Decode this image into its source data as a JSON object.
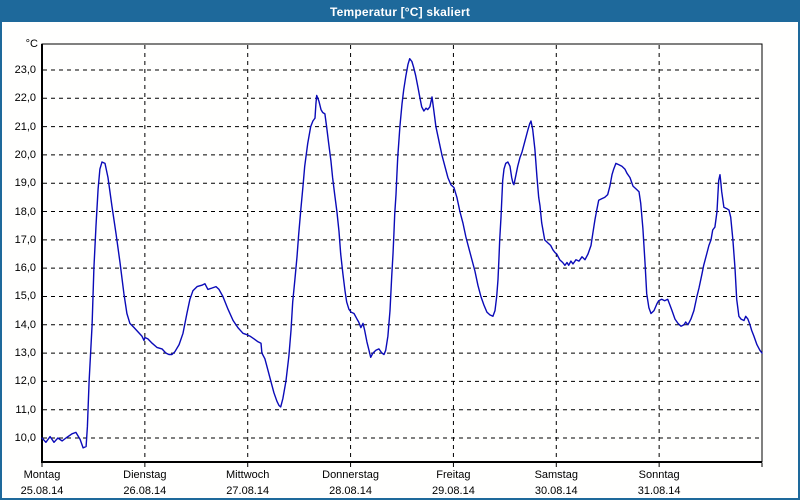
{
  "window": {
    "title": "Temperatur [°C] skaliert"
  },
  "chart_data": {
    "type": "line",
    "title": "Temperatur [°C] skaliert",
    "xlabel": "",
    "ylabel": "°C",
    "grid": "dashed",
    "legend": "none",
    "line_color": "#0b0bb8",
    "y_axis": {
      "min_shown": 10.0,
      "max_shown": 23.0,
      "tick_step": 1.0,
      "unit": "°C"
    },
    "x_range_hours": [
      0,
      168
    ],
    "y_ticks": [
      {
        "value": 23,
        "label": "23,0"
      },
      {
        "value": 22,
        "label": "22,0"
      },
      {
        "value": 21,
        "label": "21,0"
      },
      {
        "value": 20,
        "label": "20,0"
      },
      {
        "value": 19,
        "label": "19,0"
      },
      {
        "value": 18,
        "label": "18,0"
      },
      {
        "value": 17,
        "label": "17,0"
      },
      {
        "value": 16,
        "label": "16,0"
      },
      {
        "value": 15,
        "label": "15,0"
      },
      {
        "value": 14,
        "label": "14,0"
      },
      {
        "value": 13,
        "label": "13,0"
      },
      {
        "value": 12,
        "label": "12,0"
      },
      {
        "value": 11,
        "label": "11,0"
      },
      {
        "value": 10,
        "label": "10,0"
      }
    ],
    "days": [
      {
        "name": "Montag",
        "date": "25.08.14"
      },
      {
        "name": "Dienstag",
        "date": "26.08.14"
      },
      {
        "name": "Mittwoch",
        "date": "27.08.14"
      },
      {
        "name": "Donnerstag",
        "date": "28.08.14"
      },
      {
        "name": "Freitag",
        "date": "29.08.14"
      },
      {
        "name": "Samstag",
        "date": "30.08.14"
      },
      {
        "name": "Sonntag",
        "date": "31.08.14"
      }
    ],
    "series": [
      {
        "name": "Temperatur",
        "points_hours_temp": [
          [
            0,
            10.0
          ],
          [
            0.9,
            9.85
          ],
          [
            1.9,
            10.05
          ],
          [
            2.8,
            9.85
          ],
          [
            3.7,
            10.0
          ],
          [
            4.7,
            9.9
          ],
          [
            5.6,
            10.0
          ],
          [
            7.0,
            10.15
          ],
          [
            7.9,
            10.2
          ],
          [
            8.9,
            9.95
          ],
          [
            9.6,
            9.65
          ],
          [
            10.3,
            9.7
          ],
          [
            10.6,
            10.4
          ],
          [
            11.0,
            12.0
          ],
          [
            11.7,
            14.0
          ],
          [
            12.1,
            16.0
          ],
          [
            12.6,
            17.5
          ],
          [
            13.1,
            18.8
          ],
          [
            13.5,
            19.5
          ],
          [
            14.0,
            19.75
          ],
          [
            14.7,
            19.7
          ],
          [
            15.4,
            19.2
          ],
          [
            16.3,
            18.2
          ],
          [
            17.3,
            17.2
          ],
          [
            18.2,
            16.2
          ],
          [
            19.1,
            15.1
          ],
          [
            19.8,
            14.4
          ],
          [
            20.5,
            14.05
          ],
          [
            21.5,
            13.9
          ],
          [
            22.4,
            13.75
          ],
          [
            23.3,
            13.6
          ],
          [
            23.8,
            13.45
          ],
          [
            24.0,
            13.55
          ],
          [
            24.7,
            13.5
          ],
          [
            25.7,
            13.35
          ],
          [
            26.8,
            13.2
          ],
          [
            28.0,
            13.15
          ],
          [
            28.9,
            13.0
          ],
          [
            29.6,
            12.95
          ],
          [
            30.3,
            12.95
          ],
          [
            31.0,
            13.05
          ],
          [
            32.0,
            13.3
          ],
          [
            32.9,
            13.7
          ],
          [
            33.8,
            14.4
          ],
          [
            34.5,
            14.9
          ],
          [
            35.2,
            15.2
          ],
          [
            36.2,
            15.35
          ],
          [
            37.3,
            15.4
          ],
          [
            38.0,
            15.45
          ],
          [
            38.7,
            15.25
          ],
          [
            39.7,
            15.3
          ],
          [
            40.6,
            15.35
          ],
          [
            41.3,
            15.25
          ],
          [
            42.2,
            15.0
          ],
          [
            43.4,
            14.55
          ],
          [
            44.6,
            14.15
          ],
          [
            45.7,
            13.9
          ],
          [
            46.9,
            13.7
          ],
          [
            47.8,
            13.65
          ],
          [
            48.5,
            13.6
          ],
          [
            49.5,
            13.5
          ],
          [
            50.4,
            13.4
          ],
          [
            51.1,
            13.35
          ],
          [
            51.3,
            13.0
          ],
          [
            52.0,
            12.8
          ],
          [
            52.7,
            12.4
          ],
          [
            53.4,
            12.0
          ],
          [
            54.1,
            11.6
          ],
          [
            54.8,
            11.3
          ],
          [
            55.3,
            11.15
          ],
          [
            55.7,
            11.1
          ],
          [
            56.2,
            11.4
          ],
          [
            56.9,
            12.0
          ],
          [
            57.6,
            12.9
          ],
          [
            58.1,
            13.8
          ],
          [
            58.5,
            14.8
          ],
          [
            59.0,
            15.6
          ],
          [
            59.5,
            16.4
          ],
          [
            59.9,
            17.2
          ],
          [
            60.4,
            18.1
          ],
          [
            60.9,
            18.9
          ],
          [
            61.3,
            19.6
          ],
          [
            62.0,
            20.4
          ],
          [
            62.7,
            21.0
          ],
          [
            63.2,
            21.2
          ],
          [
            63.7,
            21.3
          ],
          [
            63.9,
            21.8
          ],
          [
            64.1,
            22.1
          ],
          [
            64.6,
            21.9
          ],
          [
            65.1,
            21.6
          ],
          [
            65.5,
            21.5
          ],
          [
            66.0,
            21.45
          ],
          [
            66.4,
            21.0
          ],
          [
            66.9,
            20.4
          ],
          [
            67.4,
            19.8
          ],
          [
            67.8,
            19.2
          ],
          [
            68.3,
            18.6
          ],
          [
            68.8,
            18.0
          ],
          [
            69.3,
            17.3
          ],
          [
            69.7,
            16.5
          ],
          [
            70.2,
            15.8
          ],
          [
            70.7,
            15.2
          ],
          [
            71.1,
            14.8
          ],
          [
            71.6,
            14.55
          ],
          [
            72.1,
            14.45
          ],
          [
            72.8,
            14.4
          ],
          [
            73.5,
            14.2
          ],
          [
            73.9,
            14.1
          ],
          [
            74.4,
            13.9
          ],
          [
            74.9,
            14.05
          ],
          [
            75.3,
            13.8
          ],
          [
            75.8,
            13.4
          ],
          [
            76.3,
            13.1
          ],
          [
            76.7,
            12.85
          ],
          [
            77.2,
            13.0
          ],
          [
            77.9,
            13.1
          ],
          [
            78.6,
            13.15
          ],
          [
            79.3,
            13.0
          ],
          [
            79.8,
            12.95
          ],
          [
            80.2,
            13.1
          ],
          [
            80.7,
            13.6
          ],
          [
            81.2,
            14.5
          ],
          [
            81.6,
            15.7
          ],
          [
            81.9,
            16.5
          ],
          [
            82.1,
            17.2
          ],
          [
            82.3,
            17.9
          ],
          [
            82.6,
            18.6
          ],
          [
            82.8,
            19.3
          ],
          [
            83.0,
            19.9
          ],
          [
            83.5,
            21.0
          ],
          [
            84.0,
            21.8
          ],
          [
            84.4,
            22.3
          ],
          [
            84.9,
            22.8
          ],
          [
            85.4,
            23.2
          ],
          [
            85.8,
            23.4
          ],
          [
            86.3,
            23.3
          ],
          [
            86.7,
            23.1
          ],
          [
            87.2,
            22.8
          ],
          [
            87.7,
            22.4
          ],
          [
            88.2,
            22.0
          ],
          [
            88.6,
            21.7
          ],
          [
            89.1,
            21.55
          ],
          [
            89.6,
            21.65
          ],
          [
            90.0,
            21.6
          ],
          [
            90.5,
            21.7
          ],
          [
            91.0,
            22.05
          ],
          [
            91.4,
            21.6
          ],
          [
            91.9,
            21.0
          ],
          [
            92.6,
            20.5
          ],
          [
            93.3,
            20.0
          ],
          [
            94.0,
            19.6
          ],
          [
            94.7,
            19.2
          ],
          [
            95.4,
            18.95
          ],
          [
            96.1,
            18.85
          ],
          [
            96.8,
            18.5
          ],
          [
            97.5,
            18.0
          ],
          [
            98.2,
            17.6
          ],
          [
            98.9,
            17.1
          ],
          [
            99.6,
            16.7
          ],
          [
            100.3,
            16.3
          ],
          [
            101.0,
            15.9
          ],
          [
            101.7,
            15.4
          ],
          [
            102.4,
            15.0
          ],
          [
            103.1,
            14.7
          ],
          [
            103.8,
            14.45
          ],
          [
            104.5,
            14.35
          ],
          [
            105.2,
            14.3
          ],
          [
            105.7,
            14.5
          ],
          [
            106.1,
            15.0
          ],
          [
            106.4,
            15.6
          ],
          [
            106.6,
            16.3
          ],
          [
            106.8,
            17.0
          ],
          [
            107.1,
            17.8
          ],
          [
            107.3,
            18.5
          ],
          [
            107.5,
            19.1
          ],
          [
            107.8,
            19.5
          ],
          [
            108.2,
            19.7
          ],
          [
            108.7,
            19.75
          ],
          [
            109.2,
            19.6
          ],
          [
            109.6,
            19.2
          ],
          [
            109.9,
            19.0
          ],
          [
            110.1,
            18.95
          ],
          [
            110.6,
            19.3
          ],
          [
            111.0,
            19.6
          ],
          [
            111.5,
            19.9
          ],
          [
            112.0,
            20.1
          ],
          [
            112.7,
            20.5
          ],
          [
            113.4,
            20.9
          ],
          [
            113.8,
            21.1
          ],
          [
            114.1,
            21.2
          ],
          [
            114.5,
            20.9
          ],
          [
            115.0,
            20.2
          ],
          [
            115.5,
            19.2
          ],
          [
            115.9,
            18.5
          ],
          [
            116.2,
            18.2
          ],
          [
            116.6,
            17.6
          ],
          [
            117.3,
            17.0
          ],
          [
            118.0,
            16.9
          ],
          [
            118.7,
            16.8
          ],
          [
            119.2,
            16.65
          ],
          [
            119.7,
            16.55
          ],
          [
            120.1,
            16.5
          ],
          [
            120.8,
            16.3
          ],
          [
            121.5,
            16.2
          ],
          [
            122.0,
            16.1
          ],
          [
            122.5,
            16.2
          ],
          [
            122.9,
            16.1
          ],
          [
            123.4,
            16.25
          ],
          [
            123.9,
            16.15
          ],
          [
            124.6,
            16.3
          ],
          [
            125.3,
            16.25
          ],
          [
            126.0,
            16.4
          ],
          [
            126.7,
            16.3
          ],
          [
            127.4,
            16.5
          ],
          [
            128.1,
            16.8
          ],
          [
            128.5,
            17.2
          ],
          [
            129.0,
            17.7
          ],
          [
            129.5,
            18.1
          ],
          [
            129.9,
            18.4
          ],
          [
            130.6,
            18.45
          ],
          [
            131.3,
            18.5
          ],
          [
            132.0,
            18.6
          ],
          [
            132.5,
            18.9
          ],
          [
            133.0,
            19.3
          ],
          [
            133.4,
            19.5
          ],
          [
            133.9,
            19.7
          ],
          [
            134.6,
            19.65
          ],
          [
            135.3,
            19.6
          ],
          [
            136.0,
            19.5
          ],
          [
            136.5,
            19.35
          ],
          [
            137.2,
            19.2
          ],
          [
            137.9,
            18.9
          ],
          [
            138.6,
            18.8
          ],
          [
            139.3,
            18.7
          ],
          [
            139.7,
            18.3
          ],
          [
            140.2,
            17.4
          ],
          [
            140.7,
            16.2
          ],
          [
            141.1,
            15.1
          ],
          [
            141.6,
            14.6
          ],
          [
            142.1,
            14.4
          ],
          [
            142.8,
            14.5
          ],
          [
            143.5,
            14.75
          ],
          [
            143.9,
            14.85
          ],
          [
            144.6,
            14.9
          ],
          [
            145.3,
            14.85
          ],
          [
            146.0,
            14.9
          ],
          [
            146.5,
            14.7
          ],
          [
            147.0,
            14.5
          ],
          [
            147.7,
            14.2
          ],
          [
            148.4,
            14.05
          ],
          [
            149.1,
            13.95
          ],
          [
            149.8,
            14.0
          ],
          [
            150.2,
            14.1
          ],
          [
            150.7,
            14.0
          ],
          [
            151.4,
            14.2
          ],
          [
            152.1,
            14.5
          ],
          [
            152.8,
            15.0
          ],
          [
            153.3,
            15.3
          ],
          [
            154.0,
            15.8
          ],
          [
            154.4,
            16.1
          ],
          [
            155.1,
            16.5
          ],
          [
            155.6,
            16.8
          ],
          [
            156.1,
            17.0
          ],
          [
            156.5,
            17.35
          ],
          [
            157.0,
            17.45
          ],
          [
            157.5,
            18.0
          ],
          [
            157.7,
            18.6
          ],
          [
            157.9,
            19.1
          ],
          [
            158.2,
            19.3
          ],
          [
            158.4,
            19.0
          ],
          [
            158.6,
            18.7
          ],
          [
            159.1,
            18.15
          ],
          [
            159.8,
            18.1
          ],
          [
            160.3,
            18.05
          ],
          [
            160.7,
            17.8
          ],
          [
            161.2,
            17.0
          ],
          [
            161.7,
            16.0
          ],
          [
            162.1,
            14.9
          ],
          [
            162.6,
            14.3
          ],
          [
            163.1,
            14.2
          ],
          [
            163.8,
            14.15
          ],
          [
            164.2,
            14.3
          ],
          [
            164.7,
            14.2
          ],
          [
            165.2,
            14.0
          ],
          [
            165.6,
            13.8
          ],
          [
            166.1,
            13.6
          ],
          [
            166.8,
            13.3
          ],
          [
            167.5,
            13.1
          ],
          [
            168.0,
            13.0
          ]
        ]
      }
    ],
    "colors": {
      "titlebar": "#1e699b",
      "plot_background": "#fffffe",
      "grid": "#000000",
      "axis": "#000000",
      "line": "#0b0bb8"
    }
  }
}
